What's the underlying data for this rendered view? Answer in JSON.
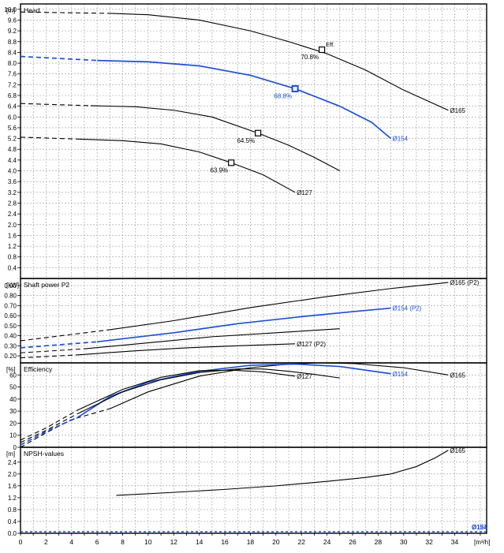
{
  "chart_data": [
    {
      "type": "line",
      "panel": "head",
      "title": "Head",
      "unit": "[m]",
      "ylim": [
        0,
        10.2
      ],
      "yticks": [
        "0.4",
        "0.8",
        "1.2",
        "1.6",
        "2.0",
        "2.4",
        "2.8",
        "3.2",
        "3.6",
        "4.0",
        "4.4",
        "4.8",
        "5.2",
        "5.6",
        "6.0",
        "6.4",
        "6.8",
        "7.2",
        "7.6",
        "8.0",
        "8.4",
        "8.8",
        "9.2",
        "9.6",
        "10.0"
      ],
      "series": [
        {
          "name": "Ø165",
          "color": "#000000",
          "dashed": [
            [
              0,
              9.9
            ],
            [
              7,
              9.85
            ]
          ],
          "points": [
            [
              7,
              9.85
            ],
            [
              10,
              9.8
            ],
            [
              14,
              9.6
            ],
            [
              18,
              9.2
            ],
            [
              21,
              8.8
            ],
            [
              24,
              8.35
            ],
            [
              27,
              7.75
            ],
            [
              30,
              7.0
            ],
            [
              33.5,
              6.25
            ]
          ],
          "eff_marker": [
            23.6,
            8.5
          ],
          "eff_label": "70.8%",
          "eff_tag": "Eff."
        },
        {
          "name": "Ø154",
          "color": "#1f50d6",
          "dashed": [
            [
              0,
              8.25
            ],
            [
              6,
              8.1
            ]
          ],
          "points": [
            [
              6,
              8.1
            ],
            [
              10,
              8.05
            ],
            [
              14,
              7.9
            ],
            [
              18,
              7.55
            ],
            [
              21.5,
              7.05
            ],
            [
              25,
              6.4
            ],
            [
              27.5,
              5.8
            ],
            [
              29,
              5.2
            ]
          ],
          "eff_marker": [
            21.5,
            7.05
          ],
          "eff_label": "68.8%"
        },
        {
          "name": "",
          "color": "#000000",
          "dashed": [
            [
              0,
              6.5
            ],
            [
              5.5,
              6.42
            ]
          ],
          "points": [
            [
              5.5,
              6.42
            ],
            [
              9,
              6.38
            ],
            [
              12,
              6.25
            ],
            [
              15,
              6.0
            ],
            [
              18.6,
              5.4
            ],
            [
              21,
              4.95
            ],
            [
              23,
              4.5
            ],
            [
              25,
              4.0
            ]
          ],
          "eff_marker": [
            18.6,
            5.4
          ],
          "eff_label": "64.5%"
        },
        {
          "name": "Ø127",
          "color": "#000000",
          "dashed": [
            [
              0,
              5.25
            ],
            [
              4.5,
              5.18
            ]
          ],
          "points": [
            [
              4.5,
              5.18
            ],
            [
              8,
              5.12
            ],
            [
              11,
              5.0
            ],
            [
              14,
              4.7
            ],
            [
              16.5,
              4.3
            ],
            [
              19,
              3.85
            ],
            [
              21.5,
              3.2
            ]
          ],
          "eff_marker": [
            16.5,
            4.3
          ],
          "eff_label": "63.9%"
        }
      ]
    },
    {
      "type": "line",
      "panel": "power",
      "title": "Shaft power P2",
      "unit": "[kW]",
      "ylim": [
        0.13,
        0.97
      ],
      "yticks": [
        "0.20",
        "0.30",
        "0.40",
        "0.50",
        "0.60",
        "0.70",
        "0.80",
        "0.90"
      ],
      "series": [
        {
          "name": "Ø165 (P2)",
          "color": "#000000",
          "dashed": [
            [
              0,
              0.35
            ],
            [
              7,
              0.46
            ]
          ],
          "points": [
            [
              7,
              0.46
            ],
            [
              12,
              0.55
            ],
            [
              18,
              0.68
            ],
            [
              24,
              0.79
            ],
            [
              29,
              0.87
            ],
            [
              33.5,
              0.93
            ]
          ]
        },
        {
          "name": "Ø154 (P2)",
          "color": "#1f50d6",
          "dashed": [
            [
              0,
              0.28
            ],
            [
              6,
              0.34
            ]
          ],
          "points": [
            [
              6,
              0.34
            ],
            [
              12,
              0.43
            ],
            [
              17,
              0.52
            ],
            [
              22,
              0.59
            ],
            [
              26,
              0.64
            ],
            [
              29,
              0.675
            ]
          ]
        },
        {
          "name": "",
          "color": "#000000",
          "dashed": [
            [
              0,
              0.23
            ],
            [
              5,
              0.27
            ]
          ],
          "points": [
            [
              5,
              0.27
            ],
            [
              10,
              0.33
            ],
            [
              15,
              0.39
            ],
            [
              20,
              0.43
            ],
            [
              25,
              0.47
            ]
          ]
        },
        {
          "name": "Ø127 (P2)",
          "color": "#000000",
          "dashed": [
            [
              0,
              0.18
            ],
            [
              4.5,
              0.21
            ]
          ],
          "points": [
            [
              4.5,
              0.21
            ],
            [
              9,
              0.25
            ],
            [
              13,
              0.28
            ],
            [
              17,
              0.3
            ],
            [
              21.5,
              0.32
            ]
          ]
        }
      ]
    },
    {
      "type": "line",
      "panel": "efficiency",
      "title": "Efficiency",
      "unit": "[%]",
      "ylim": [
        0,
        70
      ],
      "yticks": [
        "0",
        "10",
        "20",
        "30",
        "40",
        "50",
        "60"
      ],
      "series": [
        {
          "name": "Ø165",
          "color": "#000000",
          "dashed": [
            [
              0,
              0
            ],
            [
              2,
              12
            ],
            [
              4,
              23
            ],
            [
              7,
              32
            ]
          ],
          "points": [
            [
              7,
              32
            ],
            [
              10,
              46
            ],
            [
              14,
              59
            ],
            [
              18,
              66
            ],
            [
              21,
              69
            ],
            [
              23.5,
              70
            ],
            [
              26,
              69.5
            ],
            [
              30,
              66
            ],
            [
              33.5,
              60
            ]
          ]
        },
        {
          "name": "Ø154",
          "color": "#1f50d6",
          "dashed": [
            [
              0,
              2
            ],
            [
              2,
              13
            ],
            [
              4.5,
              25
            ]
          ],
          "points": [
            [
              4.5,
              25
            ],
            [
              7,
              42
            ],
            [
              10,
              54
            ],
            [
              14,
              63
            ],
            [
              18,
              68
            ],
            [
              21.5,
              69
            ],
            [
              25,
              67
            ],
            [
              29,
              61
            ]
          ]
        },
        {
          "name": "",
          "color": "#000000",
          "dashed": [
            [
              0,
              4
            ],
            [
              2,
              14
            ],
            [
              4.5,
              28
            ]
          ],
          "points": [
            [
              4.5,
              28
            ],
            [
              8,
              46
            ],
            [
              11,
              56
            ],
            [
              14,
              62
            ],
            [
              17,
              65
            ],
            [
              19,
              65
            ],
            [
              21,
              63
            ],
            [
              23,
              60.5
            ],
            [
              25,
              57.5
            ]
          ]
        },
        {
          "name": "Ø127",
          "color": "#000000",
          "dashed": [
            [
              0,
              6
            ],
            [
              2,
              16
            ],
            [
              4.5,
              31
            ]
          ],
          "points": [
            [
              4.5,
              31
            ],
            [
              8,
              48
            ],
            [
              11,
              58
            ],
            [
              14,
              63.5
            ],
            [
              16.5,
              64
            ],
            [
              19,
              62.5
            ],
            [
              21.5,
              59
            ]
          ]
        }
      ]
    },
    {
      "type": "line",
      "panel": "npsh",
      "title": "NPSH-values",
      "unit": "[m]",
      "ylim": [
        0,
        2.9
      ],
      "yticks": [
        "0.0",
        "0.4",
        "0.8",
        "1.2",
        "1.6",
        "2.0",
        "2.4"
      ],
      "series": [
        {
          "name": "Ø165",
          "color": "#000000",
          "dashed": [],
          "points": [
            [
              7.5,
              1.28
            ],
            [
              12,
              1.38
            ],
            [
              16,
              1.48
            ],
            [
              20,
              1.6
            ],
            [
              24,
              1.75
            ],
            [
              27,
              1.88
            ],
            [
              29,
              2.0
            ],
            [
              31,
              2.25
            ],
            [
              32.5,
              2.55
            ],
            [
              33.5,
              2.8
            ]
          ]
        }
      ]
    }
  ],
  "x_axis": {
    "unit": "[m³/h]",
    "xlim": [
      0,
      36.5
    ],
    "ticks": [
      "0",
      "2",
      "4",
      "6",
      "8",
      "10",
      "12",
      "14",
      "16",
      "18",
      "20",
      "22",
      "24",
      "26",
      "28",
      "30",
      "32",
      "34"
    ],
    "overlap_label": "Ø154",
    "overlap_label_2": "Ø127"
  },
  "colors": {
    "blue": "#1f50d6",
    "black": "#000000",
    "grid": "#9a9a9a"
  }
}
